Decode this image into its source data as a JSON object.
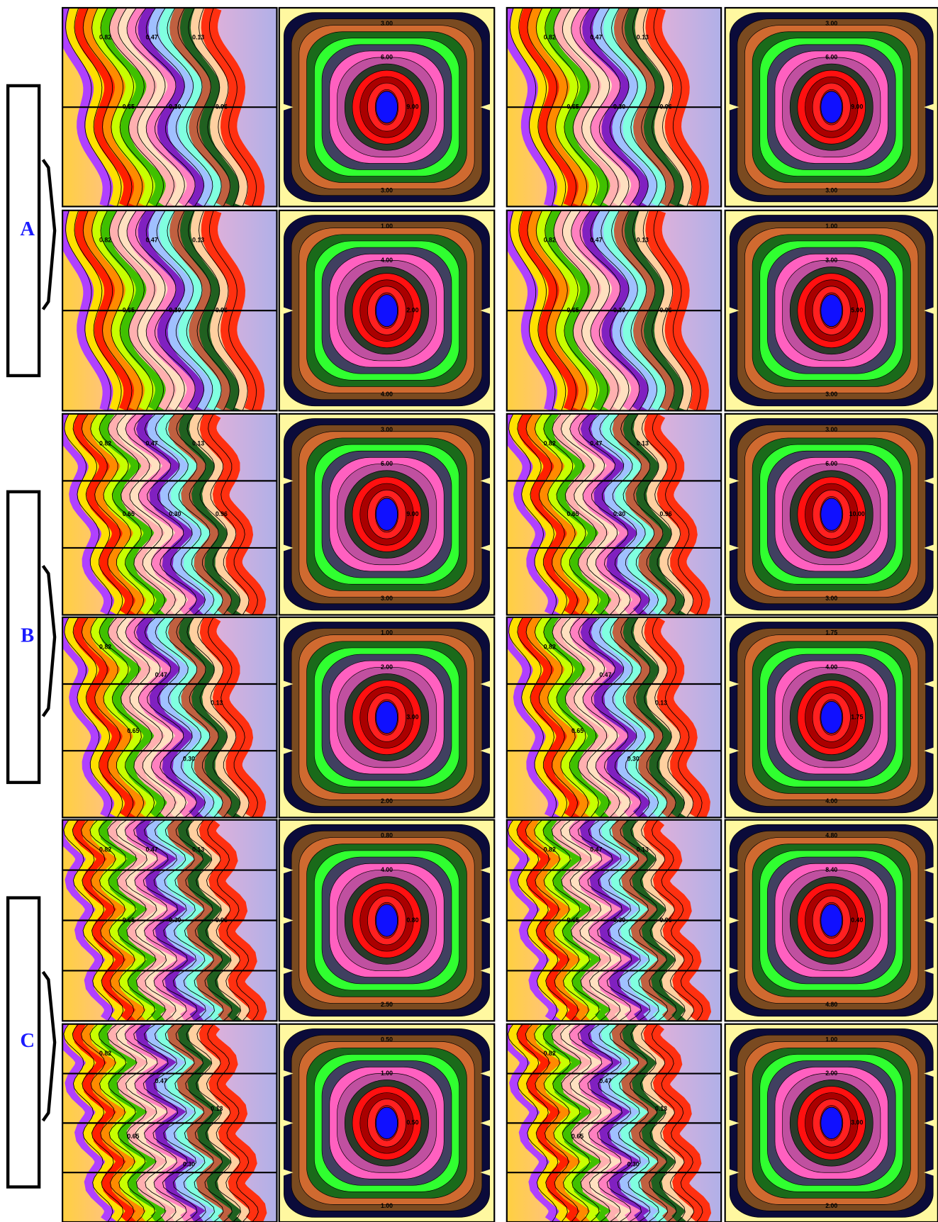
{
  "groups": [
    {
      "label": "A",
      "rows": [
        [
          {
            "labels": [
              "0.82",
              "0.65",
              "0.47",
              "0.30",
              "0.13",
              "0.96"
            ]
          },
          {
            "labels": [
              "3.00",
              "6.00",
              "9.00",
              "3.00"
            ]
          },
          {
            "labels": [
              "0.82",
              "0.65",
              "0.47",
              "0.30",
              "0.13",
              "0.96"
            ]
          },
          {
            "labels": [
              "3.00",
              "6.00",
              "9.00",
              "3.00"
            ]
          }
        ],
        [
          {
            "labels": [
              "0.82",
              "0.65",
              "0.47",
              "0.30",
              "0.13",
              "0.96"
            ]
          },
          {
            "labels": [
              "1.00",
              "4.00",
              "2.00",
              "4.00"
            ]
          },
          {
            "labels": [
              "0.82",
              "0.65",
              "0.47",
              "0.30",
              "0.13",
              "0.96"
            ]
          },
          {
            "labels": [
              "1.00",
              "3.00",
              "5.00",
              "3.00"
            ]
          }
        ]
      ]
    },
    {
      "label": "B",
      "rows": [
        [
          {
            "labels": [
              "0.82",
              "0.65",
              "0.47",
              "0.30",
              "0.13",
              "0.96"
            ]
          },
          {
            "labels": [
              "3.00",
              "6.00",
              "9.00",
              "3.00"
            ]
          },
          {
            "labels": [
              "0.82",
              "0.65",
              "0.47",
              "0.30",
              "0.13",
              "0.96"
            ]
          },
          {
            "labels": [
              "3.00",
              "6.00",
              "10.00",
              "3.00"
            ]
          }
        ],
        [
          {
            "labels": [
              "0.82",
              "0.65",
              "0.47",
              "0.30",
              "0.13"
            ]
          },
          {
            "labels": [
              "1.00",
              "2.00",
              "3.00",
              "2.00"
            ]
          },
          {
            "labels": [
              "0.82",
              "0.65",
              "0.47",
              "0.30",
              "0.13"
            ]
          },
          {
            "labels": [
              "1.75",
              "4.00",
              "1.75",
              "4.00"
            ]
          }
        ]
      ]
    },
    {
      "label": "C",
      "rows": [
        [
          {
            "labels": [
              "0.82",
              "0.65",
              "0.47",
              "0.30",
              "0.13",
              "0.96"
            ]
          },
          {
            "labels": [
              "0.80",
              "4.00",
              "0.80",
              "2.50"
            ]
          },
          {
            "labels": [
              "0.82",
              "0.65",
              "0.47",
              "0.30",
              "0.13",
              "0.96"
            ]
          },
          {
            "labels": [
              "4.80",
              "8.40",
              "0.40",
              "4.80"
            ]
          }
        ],
        [
          {
            "labels": [
              "0.82",
              "0.65",
              "0.47",
              "0.30",
              "0.13"
            ]
          },
          {
            "labels": [
              "0.50",
              "1.00",
              "0.50",
              "1.00"
            ]
          },
          {
            "labels": [
              "0.82",
              "0.65",
              "0.47",
              "0.30",
              "0.13"
            ]
          },
          {
            "labels": [
              "1.00",
              "2.00",
              "3.00",
              "2.00"
            ]
          }
        ]
      ]
    }
  ]
}
